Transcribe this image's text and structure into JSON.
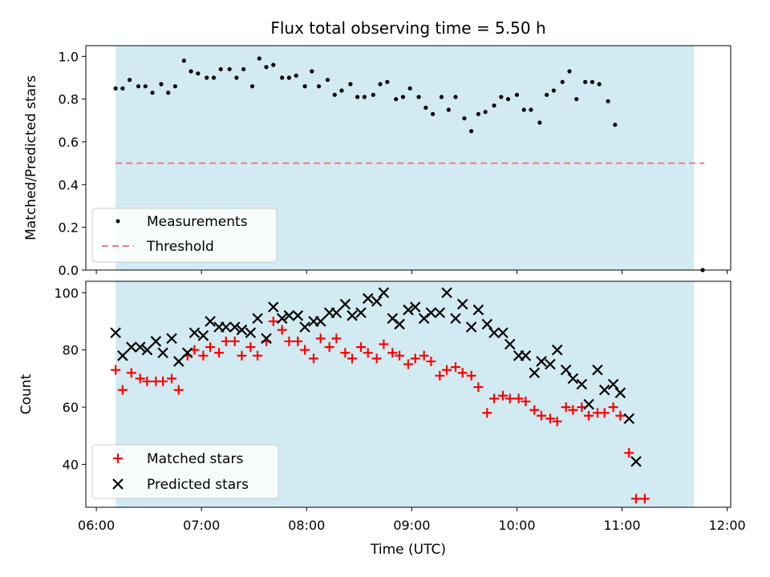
{
  "chart_data": [
    {
      "type": "scatter",
      "title": "Flux total observing time = 5.50 h",
      "xlabel": "",
      "ylabel": "Matched/Predicted stars",
      "xlim": [
        "05:54",
        "12:02"
      ],
      "ylim": [
        0,
        1.05
      ],
      "yticks": [
        "0.0",
        "0.2",
        "0.4",
        "0.6",
        "0.8",
        "1.0"
      ],
      "xticks": [
        "06:00",
        "07:00",
        "08:00",
        "09:00",
        "10:00",
        "11:00",
        "12:00"
      ],
      "shaded_span": [
        "06:11",
        "11:41"
      ],
      "threshold": 0.5,
      "threshold_range": [
        "06:11",
        "11:47"
      ],
      "legend": {
        "position": "lower-left",
        "entries": [
          "Measurements",
          "Threshold"
        ]
      },
      "colors": {
        "shade": "#add8e6",
        "measurements": "#000000",
        "threshold": "#f47b7b"
      },
      "series": [
        {
          "name": "Measurements",
          "points": [
            [
              "06:11",
              0.85
            ],
            [
              "06:15",
              0.85
            ],
            [
              "06:19",
              0.89
            ],
            [
              "06:24",
              0.86
            ],
            [
              "06:28",
              0.86
            ],
            [
              "06:32",
              0.83
            ],
            [
              "06:37",
              0.87
            ],
            [
              "06:41",
              0.83
            ],
            [
              "06:45",
              0.86
            ],
            [
              "06:50",
              0.98
            ],
            [
              "06:54",
              0.93
            ],
            [
              "06:58",
              0.92
            ],
            [
              "07:03",
              0.9
            ],
            [
              "07:07",
              0.9
            ],
            [
              "07:11",
              0.94
            ],
            [
              "07:16",
              0.94
            ],
            [
              "07:20",
              0.9
            ],
            [
              "07:24",
              0.94
            ],
            [
              "07:29",
              0.86
            ],
            [
              "07:33",
              0.99
            ],
            [
              "07:37",
              0.95
            ],
            [
              "07:41",
              0.96
            ],
            [
              "07:46",
              0.9
            ],
            [
              "07:50",
              0.9
            ],
            [
              "07:54",
              0.91
            ],
            [
              "07:59",
              0.86
            ],
            [
              "08:03",
              0.93
            ],
            [
              "08:07",
              0.86
            ],
            [
              "08:12",
              0.89
            ],
            [
              "08:16",
              0.82
            ],
            [
              "08:20",
              0.84
            ],
            [
              "08:25",
              0.87
            ],
            [
              "08:29",
              0.81
            ],
            [
              "08:33",
              0.81
            ],
            [
              "08:38",
              0.82
            ],
            [
              "08:42",
              0.87
            ],
            [
              "08:46",
              0.88
            ],
            [
              "08:51",
              0.8
            ],
            [
              "08:55",
              0.81
            ],
            [
              "08:59",
              0.85
            ],
            [
              "09:04",
              0.81
            ],
            [
              "09:08",
              0.76
            ],
            [
              "09:12",
              0.73
            ],
            [
              "09:17",
              0.81
            ],
            [
              "09:21",
              0.75
            ],
            [
              "09:25",
              0.81
            ],
            [
              "09:30",
              0.71
            ],
            [
              "09:34",
              0.65
            ],
            [
              "09:38",
              0.73
            ],
            [
              "09:42",
              0.74
            ],
            [
              "09:47",
              0.77
            ],
            [
              "09:51",
              0.81
            ],
            [
              "09:55",
              0.8
            ],
            [
              "10:00",
              0.82
            ],
            [
              "10:04",
              0.75
            ],
            [
              "10:08",
              0.75
            ],
            [
              "10:13",
              0.69
            ],
            [
              "10:17",
              0.82
            ],
            [
              "10:21",
              0.84
            ],
            [
              "10:26",
              0.88
            ],
            [
              "10:30",
              0.93
            ],
            [
              "10:34",
              0.8
            ],
            [
              "10:39",
              0.88
            ],
            [
              "10:43",
              0.88
            ],
            [
              "10:47",
              0.87
            ],
            [
              "10:52",
              0.79
            ],
            [
              "10:56",
              0.68
            ],
            [
              "11:46",
              0.0
            ]
          ]
        }
      ]
    },
    {
      "type": "scatter",
      "title": "",
      "xlabel": "Time (UTC)",
      "ylabel": "Count",
      "xlim": [
        "05:54",
        "12:02"
      ],
      "ylim": [
        25,
        104
      ],
      "yticks": [
        "40",
        "60",
        "80",
        "100"
      ],
      "xticks": [
        "06:00",
        "07:00",
        "08:00",
        "09:00",
        "10:00",
        "11:00",
        "12:00"
      ],
      "shaded_span": [
        "06:11",
        "11:41"
      ],
      "legend": {
        "position": "lower-left",
        "entries": [
          "Matched stars",
          "Predicted stars"
        ]
      },
      "colors": {
        "shade": "#add8e6",
        "matched": "#ff0000",
        "predicted": "#000000"
      },
      "series": [
        {
          "name": "Matched stars",
          "marker": "+",
          "points": [
            [
              "06:11",
              73
            ],
            [
              "06:15",
              66
            ],
            [
              "06:20",
              72
            ],
            [
              "06:25",
              70
            ],
            [
              "06:29",
              69
            ],
            [
              "06:34",
              69
            ],
            [
              "06:38",
              69
            ],
            [
              "06:43",
              70
            ],
            [
              "06:47",
              66
            ],
            [
              "06:52",
              78
            ],
            [
              "06:56",
              80
            ],
            [
              "07:01",
              78
            ],
            [
              "07:05",
              81
            ],
            [
              "07:10",
              79
            ],
            [
              "07:14",
              83
            ],
            [
              "07:19",
              83
            ],
            [
              "07:23",
              78
            ],
            [
              "07:28",
              81
            ],
            [
              "07:32",
              78
            ],
            [
              "07:37",
              83
            ],
            [
              "07:41",
              90
            ],
            [
              "07:46",
              87
            ],
            [
              "07:50",
              83
            ],
            [
              "07:55",
              83
            ],
            [
              "07:59",
              80
            ],
            [
              "08:04",
              77
            ],
            [
              "08:08",
              84
            ],
            [
              "08:13",
              81
            ],
            [
              "08:17",
              84
            ],
            [
              "08:22",
              79
            ],
            [
              "08:26",
              77
            ],
            [
              "08:31",
              81
            ],
            [
              "08:35",
              79
            ],
            [
              "08:40",
              77
            ],
            [
              "08:44",
              82
            ],
            [
              "08:49",
              79
            ],
            [
              "08:53",
              78
            ],
            [
              "08:58",
              75
            ],
            [
              "09:02",
              77
            ],
            [
              "09:07",
              78
            ],
            [
              "09:11",
              76
            ],
            [
              "09:16",
              71
            ],
            [
              "09:20",
              73
            ],
            [
              "09:25",
              74
            ],
            [
              "09:29",
              72
            ],
            [
              "09:34",
              71
            ],
            [
              "09:38",
              67
            ],
            [
              "09:43",
              58
            ],
            [
              "09:47",
              63
            ],
            [
              "09:52",
              64
            ],
            [
              "09:56",
              63
            ],
            [
              "10:01",
              63
            ],
            [
              "10:05",
              62
            ],
            [
              "10:10",
              59
            ],
            [
              "10:14",
              57
            ],
            [
              "10:19",
              56
            ],
            [
              "10:23",
              55
            ],
            [
              "10:28",
              60
            ],
            [
              "10:32",
              59
            ],
            [
              "10:37",
              60
            ],
            [
              "10:41",
              57
            ],
            [
              "10:46",
              58
            ],
            [
              "10:50",
              58
            ],
            [
              "10:55",
              60
            ],
            [
              "10:59",
              57
            ],
            [
              "11:04",
              44
            ],
            [
              "11:08",
              28
            ],
            [
              "11:13",
              28
            ]
          ]
        },
        {
          "name": "Predicted stars",
          "marker": "x",
          "points": [
            [
              "06:11",
              86
            ],
            [
              "06:15",
              78
            ],
            [
              "06:20",
              81
            ],
            [
              "06:25",
              81
            ],
            [
              "06:29",
              80
            ],
            [
              "06:34",
              83
            ],
            [
              "06:38",
              79
            ],
            [
              "06:43",
              84
            ],
            [
              "06:47",
              76
            ],
            [
              "06:52",
              79
            ],
            [
              "06:56",
              86
            ],
            [
              "07:01",
              85
            ],
            [
              "07:05",
              90
            ],
            [
              "07:10",
              88
            ],
            [
              "07:14",
              88
            ],
            [
              "07:19",
              88
            ],
            [
              "07:23",
              87
            ],
            [
              "07:28",
              86
            ],
            [
              "07:32",
              91
            ],
            [
              "07:37",
              84
            ],
            [
              "07:41",
              95
            ],
            [
              "07:46",
              91
            ],
            [
              "07:50",
              92
            ],
            [
              "07:55",
              92
            ],
            [
              "07:59",
              88
            ],
            [
              "08:04",
              90
            ],
            [
              "08:08",
              90
            ],
            [
              "08:13",
              93
            ],
            [
              "08:17",
              93
            ],
            [
              "08:22",
              96
            ],
            [
              "08:26",
              92
            ],
            [
              "08:31",
              93
            ],
            [
              "08:35",
              98
            ],
            [
              "08:40",
              97
            ],
            [
              "08:44",
              100
            ],
            [
              "08:49",
              91
            ],
            [
              "08:53",
              89
            ],
            [
              "08:58",
              94
            ],
            [
              "09:02",
              95
            ],
            [
              "09:07",
              91
            ],
            [
              "09:11",
              93
            ],
            [
              "09:16",
              93
            ],
            [
              "09:20",
              100
            ],
            [
              "09:25",
              91
            ],
            [
              "09:29",
              96
            ],
            [
              "09:34",
              88
            ],
            [
              "09:38",
              94
            ],
            [
              "09:43",
              89
            ],
            [
              "09:47",
              86
            ],
            [
              "09:52",
              86
            ],
            [
              "09:56",
              82
            ],
            [
              "10:01",
              78
            ],
            [
              "10:05",
              78
            ],
            [
              "10:10",
              72
            ],
            [
              "10:14",
              76
            ],
            [
              "10:19",
              75
            ],
            [
              "10:23",
              80
            ],
            [
              "10:28",
              73
            ],
            [
              "10:32",
              70
            ],
            [
              "10:37",
              68
            ],
            [
              "10:41",
              61
            ],
            [
              "10:46",
              73
            ],
            [
              "10:50",
              66
            ],
            [
              "10:55",
              68
            ],
            [
              "10:59",
              65
            ],
            [
              "11:04",
              56
            ],
            [
              "11:08",
              41
            ]
          ]
        }
      ]
    }
  ]
}
